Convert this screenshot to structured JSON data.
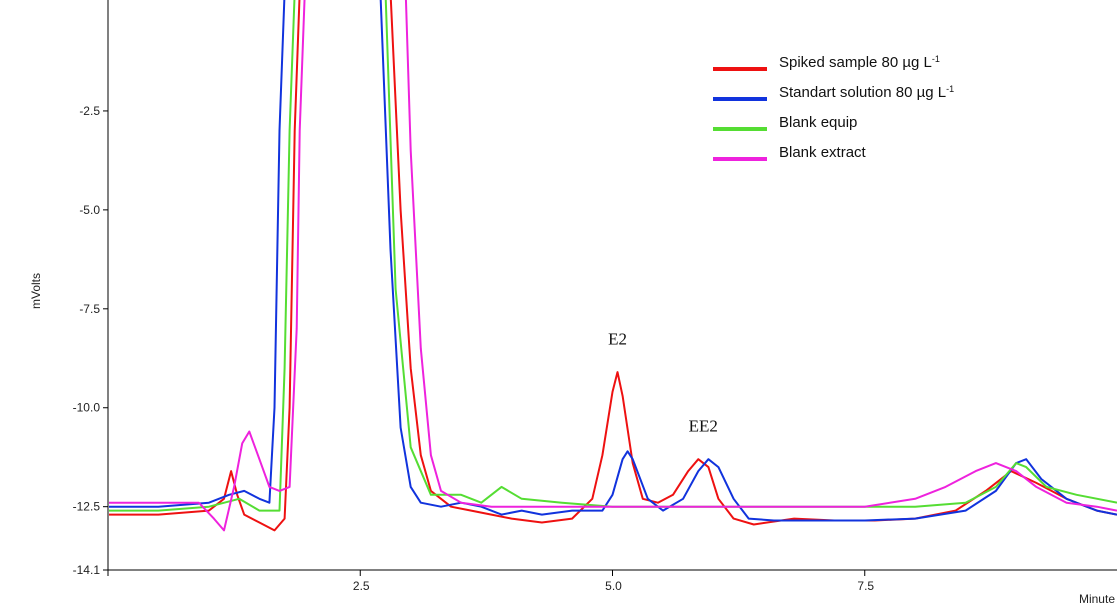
{
  "chart_data": {
    "type": "line",
    "title": "",
    "xlabel": "Minute",
    "ylabel": "mVolts",
    "xlim": [
      0,
      10
    ],
    "ylim": [
      -14.1,
      0
    ],
    "x_ticks": [
      {
        "value": 2.5,
        "label": "2.5"
      },
      {
        "value": 5.0,
        "label": "5.0"
      },
      {
        "value": 7.5,
        "label": "7.5"
      }
    ],
    "y_ticks": [
      {
        "value": -2.5,
        "label": "-2.5"
      },
      {
        "value": -5.0,
        "label": "-5.0"
      },
      {
        "value": -7.5,
        "label": "-7.5"
      },
      {
        "value": -10.0,
        "label": "-10.0"
      },
      {
        "value": -12.5,
        "label": "-12.5"
      },
      {
        "value": -14.1,
        "label": "-14.1"
      }
    ],
    "grid": false,
    "legend_position": "top-right",
    "series": [
      {
        "name": "Spiked sample 80 µg L",
        "name_sup": "-1",
        "color": "#ee1111",
        "x": [
          0,
          0.5,
          1.0,
          1.15,
          1.22,
          1.28,
          1.35,
          1.5,
          1.65,
          1.75,
          1.8,
          1.85,
          1.9,
          2.8,
          2.9,
          3.0,
          3.1,
          3.2,
          3.4,
          3.6,
          3.8,
          4.0,
          4.3,
          4.6,
          4.8,
          4.9,
          5.0,
          5.05,
          5.1,
          5.2,
          5.3,
          5.45,
          5.6,
          5.75,
          5.85,
          5.95,
          6.05,
          6.2,
          6.4,
          6.8,
          7.2,
          7.6,
          8.0,
          8.4,
          8.7,
          8.95,
          9.2,
          9.5,
          9.8,
          10.0
        ],
        "y": [
          -12.7,
          -12.7,
          -12.6,
          -12.3,
          -11.6,
          -12.2,
          -12.7,
          -12.9,
          -13.1,
          -12.8,
          -10.0,
          -3.0,
          0.5,
          0.5,
          -5.0,
          -9.0,
          -11.2,
          -12.1,
          -12.5,
          -12.6,
          -12.7,
          -12.8,
          -12.9,
          -12.8,
          -12.3,
          -11.2,
          -9.6,
          -9.1,
          -9.7,
          -11.4,
          -12.3,
          -12.4,
          -12.2,
          -11.6,
          -11.3,
          -11.5,
          -12.3,
          -12.8,
          -12.95,
          -12.8,
          -12.85,
          -12.85,
          -12.8,
          -12.6,
          -12.1,
          -11.6,
          -11.9,
          -12.3,
          -12.6,
          -12.7
        ]
      },
      {
        "name": "Standart solution 80 µg L",
        "name_sup": "-1",
        "color": "#1133dd",
        "x": [
          0,
          0.5,
          1.0,
          1.2,
          1.35,
          1.5,
          1.6,
          1.65,
          1.7,
          1.75,
          2.7,
          2.8,
          2.9,
          3.0,
          3.1,
          3.3,
          3.5,
          3.7,
          3.9,
          4.1,
          4.3,
          4.6,
          4.9,
          5.0,
          5.1,
          5.15,
          5.2,
          5.35,
          5.5,
          5.7,
          5.85,
          5.95,
          6.05,
          6.2,
          6.35,
          6.6,
          7.0,
          7.5,
          8.0,
          8.5,
          8.8,
          9.0,
          9.1,
          9.25,
          9.5,
          9.8,
          10.0
        ],
        "y": [
          -12.5,
          -12.5,
          -12.4,
          -12.2,
          -12.1,
          -12.3,
          -12.4,
          -10.0,
          -3.0,
          0.5,
          0.5,
          -6.0,
          -10.5,
          -12.0,
          -12.4,
          -12.5,
          -12.4,
          -12.5,
          -12.7,
          -12.6,
          -12.7,
          -12.6,
          -12.6,
          -12.2,
          -11.3,
          -11.1,
          -11.3,
          -12.3,
          -12.6,
          -12.3,
          -11.6,
          -11.3,
          -11.5,
          -12.3,
          -12.8,
          -12.85,
          -12.85,
          -12.85,
          -12.8,
          -12.6,
          -12.1,
          -11.4,
          -11.3,
          -11.8,
          -12.3,
          -12.6,
          -12.7
        ]
      },
      {
        "name": "Blank equip",
        "name_sup": "",
        "color": "#55dd33",
        "x": [
          0,
          0.5,
          1.0,
          1.3,
          1.5,
          1.7,
          1.75,
          1.8,
          1.85,
          2.75,
          2.85,
          3.0,
          3.2,
          3.5,
          3.7,
          3.9,
          4.1,
          4.5,
          5.0,
          5.5,
          6.0,
          6.5,
          7.0,
          7.5,
          8.0,
          8.5,
          8.8,
          9.0,
          9.1,
          9.3,
          9.6,
          10.0
        ],
        "y": [
          -12.6,
          -12.6,
          -12.5,
          -12.3,
          -12.6,
          -12.6,
          -9.0,
          -3.0,
          0.5,
          0.5,
          -7.0,
          -11.0,
          -12.2,
          -12.2,
          -12.4,
          -12.0,
          -12.3,
          -12.4,
          -12.5,
          -12.5,
          -12.5,
          -12.5,
          -12.5,
          -12.5,
          -12.5,
          -12.4,
          -12.0,
          -11.4,
          -11.5,
          -12.0,
          -12.2,
          -12.4
        ]
      },
      {
        "name": "Blank extract",
        "name_sup": "",
        "color": "#ee22dd",
        "x": [
          0,
          0.5,
          0.9,
          1.05,
          1.15,
          1.25,
          1.33,
          1.4,
          1.5,
          1.6,
          1.7,
          1.8,
          1.87,
          1.9,
          1.95,
          2.95,
          3.0,
          3.1,
          3.2,
          3.3,
          3.5,
          3.8,
          4.2,
          4.6,
          5.0,
          5.5,
          6.0,
          6.5,
          7.0,
          7.5,
          8.0,
          8.3,
          8.6,
          8.8,
          9.0,
          9.2,
          9.5,
          9.8,
          10.0
        ],
        "y": [
          -12.4,
          -12.4,
          -12.4,
          -12.8,
          -13.1,
          -12.0,
          -10.9,
          -10.6,
          -11.3,
          -12.0,
          -12.1,
          -12.0,
          -8.0,
          -3.0,
          0.5,
          0.5,
          -3.5,
          -8.5,
          -11.2,
          -12.1,
          -12.4,
          -12.5,
          -12.5,
          -12.5,
          -12.5,
          -12.5,
          -12.5,
          -12.5,
          -12.5,
          -12.5,
          -12.3,
          -12.0,
          -11.6,
          -11.4,
          -11.6,
          -12.0,
          -12.4,
          -12.5,
          -12.6
        ]
      }
    ],
    "annotations": [
      {
        "text": "E2",
        "x": 5.05,
        "y": -8.4
      },
      {
        "text": "EE2",
        "x": 5.9,
        "y": -10.6
      }
    ]
  }
}
